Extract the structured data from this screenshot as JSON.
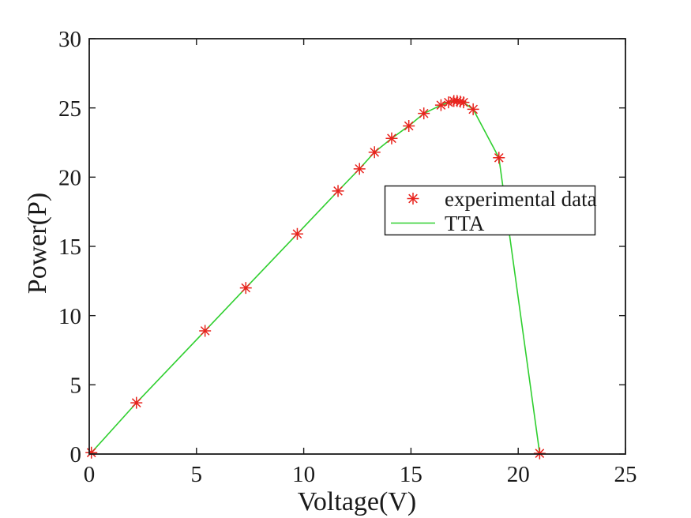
{
  "figure": {
    "background": "#ffffff",
    "axis_color": "#1a1a1a",
    "text_color": "#1a1a1a"
  },
  "chart_data": {
    "type": "line+scatter",
    "title": "",
    "xlabel": "Voltage(V)",
    "ylabel": "Power(P)",
    "xlim": [
      0,
      25
    ],
    "ylim": [
      0,
      30
    ],
    "xticks": [
      0,
      5,
      10,
      15,
      20,
      25
    ],
    "yticks": [
      0,
      5,
      10,
      15,
      20,
      25,
      30
    ],
    "grid": false,
    "box": true,
    "tick_direction": "in",
    "legend": {
      "position": "middle-right",
      "border_color": "#1a1a1a",
      "background": "#ffffff",
      "entries": [
        {
          "label": "experimental data",
          "swatch": "asterisk-marker",
          "color": "#e8231d"
        },
        {
          "label": "TTA",
          "swatch": "line-sample",
          "color": "#2fcf2f"
        }
      ]
    },
    "series": [
      {
        "name": "experimental data",
        "type": "scatter",
        "marker": "asterisk",
        "color": "#e8231d",
        "x": [
          0.1,
          2.2,
          5.4,
          7.3,
          9.7,
          11.6,
          12.6,
          13.3,
          14.1,
          14.9,
          15.6,
          16.4,
          16.75,
          17.0,
          17.15,
          17.3,
          17.45,
          17.9,
          19.1,
          21.0
        ],
        "y": [
          0.1,
          3.7,
          8.9,
          12.0,
          15.9,
          19.0,
          20.6,
          21.8,
          22.8,
          23.7,
          24.6,
          25.2,
          25.4,
          25.5,
          25.5,
          25.45,
          25.4,
          24.9,
          21.4,
          0.05
        ]
      },
      {
        "name": "TTA",
        "type": "line",
        "color": "#2fcf2f",
        "x": [
          0.1,
          2.2,
          5.4,
          7.3,
          9.7,
          11.6,
          12.6,
          13.3,
          14.1,
          14.9,
          15.6,
          16.4,
          16.75,
          17.0,
          17.15,
          17.3,
          17.45,
          17.9,
          19.1,
          21.0
        ],
        "y": [
          0.1,
          3.7,
          8.9,
          12.0,
          15.9,
          19.0,
          20.6,
          21.8,
          22.8,
          23.7,
          24.6,
          25.2,
          25.4,
          25.5,
          25.5,
          25.45,
          25.4,
          24.9,
          21.4,
          0.05
        ]
      }
    ]
  }
}
